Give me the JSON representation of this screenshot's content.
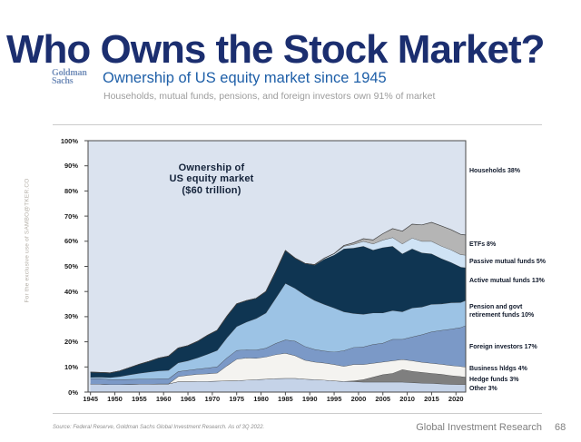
{
  "slide": {
    "title": "Who Owns the Stock Market?",
    "logo": {
      "line1": "Goldman",
      "line2": "Sachs"
    },
    "heading": "Ownership of US equity market since 1945",
    "subheading": "Households, mutual funds, pensions, and foreign investors own 91% of market",
    "watermark": "For the exclusive use of SAMBO@TKER.CO",
    "source": "Source: Federal Reserve, Goldman Sachs Global Investment Research. As of 3Q 2022.",
    "footer": {
      "department": "Global Investment Research",
      "page": "68"
    }
  },
  "chart_data": {
    "type": "area",
    "stacked": true,
    "annotation": "Ownership of\nUS equity market\n($60 trillion)",
    "ylim": [
      0,
      100
    ],
    "x_domain": [
      1944.5,
      2022
    ],
    "grid": false,
    "legend_position": "right",
    "x": [
      1945,
      1947,
      1949,
      1951,
      1953,
      1955,
      1957,
      1959,
      1961,
      1963,
      1965,
      1967,
      1969,
      1971,
      1973,
      1975,
      1977,
      1979,
      1981,
      1983,
      1985,
      1987,
      1989,
      1991,
      1993,
      1995,
      1997,
      1999,
      2001,
      2003,
      2005,
      2007,
      2009,
      2011,
      2013,
      2015,
      2017,
      2019,
      2021,
      2022
    ],
    "x_ticks": [
      1945,
      1950,
      1955,
      1960,
      1965,
      1970,
      1975,
      1980,
      1985,
      1990,
      1995,
      2000,
      2005,
      2010,
      2015,
      2020
    ],
    "y_ticks": [
      {
        "label": "100%",
        "value": 100
      },
      {
        "label": "90%",
        "value": 90
      },
      {
        "label": "80%",
        "value": 80
      },
      {
        "label": "70%",
        "value": 70
      },
      {
        "label": "60%",
        "value": 60
      },
      {
        "label": "50%",
        "value": 50
      },
      {
        "label": "40%",
        "value": 40
      },
      {
        "label": "30%",
        "value": 30
      },
      {
        "label": "20%",
        "value": 20
      },
      {
        "label": "10%",
        "value": 10
      },
      {
        "label": "0%",
        "value": 0
      }
    ],
    "background_series": {
      "name": "Households",
      "share_label": "Households 38%",
      "color": "#dbe3ef"
    },
    "series": [
      {
        "name": "Other",
        "color": "#c5d3e8",
        "values": [
          3.2,
          3.2,
          3.0,
          3.0,
          3.1,
          3.2,
          3.2,
          3.3,
          3.3,
          4.2,
          4.2,
          4.3,
          4.3,
          4.4,
          4.5,
          4.6,
          4.8,
          5.0,
          5.2,
          5.4,
          5.5,
          5.5,
          5.2,
          5.0,
          4.8,
          4.5,
          4.3,
          4.2,
          4.0,
          4.0,
          4.0,
          4.0,
          4.0,
          3.8,
          3.6,
          3.5,
          3.3,
          3.1,
          3.0,
          3.0
        ]
      },
      {
        "name": "Hedge funds",
        "color": "#7f7f7f",
        "values": [
          0,
          0,
          0,
          0,
          0,
          0,
          0,
          0,
          0,
          0,
          0,
          0,
          0,
          0,
          0,
          0,
          0,
          0,
          0,
          0,
          0,
          0,
          0,
          0,
          0,
          0,
          0,
          0.3,
          1.0,
          2.0,
          3.0,
          3.5,
          5.0,
          4.5,
          4.3,
          4.0,
          3.8,
          3.5,
          3.2,
          3.0
        ]
      },
      {
        "name": "Business hldgs",
        "color": "#f4f3f0",
        "values": [
          0,
          0,
          0,
          0,
          0,
          0,
          0,
          0,
          0,
          2.0,
          2.5,
          2.8,
          3.0,
          3.2,
          6.0,
          8.5,
          8.8,
          8.5,
          8.8,
          9.5,
          10.0,
          9.0,
          7.5,
          7.0,
          6.8,
          6.5,
          6.0,
          6.5,
          6.0,
          5.5,
          5.0,
          5.0,
          4.0,
          4.2,
          4.0,
          4.0,
          4.0,
          4.0,
          4.0,
          4.0
        ]
      },
      {
        "name": "Foreign investors",
        "color": "#7b99c7",
        "values": [
          2.2,
          2.2,
          2.0,
          2.0,
          2.0,
          2.0,
          2.0,
          2.0,
          2.0,
          2.0,
          2.0,
          2.1,
          2.3,
          2.5,
          3.2,
          3.5,
          3.3,
          3.3,
          3.5,
          4.5,
          5.3,
          5.8,
          5.5,
          5.0,
          4.8,
          5.0,
          6.2,
          6.8,
          7.0,
          7.5,
          7.5,
          8.5,
          8.0,
          9.5,
          11.0,
          12.5,
          13.5,
          14.5,
          15.5,
          16.5
        ]
      },
      {
        "name": "Pension and govt retirement funds",
        "color": "#9cc3e5",
        "values": [
          0.5,
          0.6,
          0.8,
          1.2,
          1.8,
          2.3,
          2.8,
          3.2,
          3.4,
          3.5,
          3.8,
          4.5,
          5.5,
          6.5,
          8.0,
          9.5,
          11.0,
          12.5,
          14.0,
          18.0,
          22.5,
          21.0,
          20.5,
          19.5,
          18.5,
          17.5,
          15.5,
          13.5,
          13.0,
          12.5,
          12.0,
          11.5,
          11.0,
          11.5,
          11.0,
          11.0,
          10.5,
          10.5,
          10.0,
          10.0
        ]
      },
      {
        "name": "Active mutual funds",
        "color": "#0f3552",
        "values": [
          2.0,
          1.8,
          1.8,
          2.2,
          2.8,
          3.6,
          4.2,
          5.0,
          5.6,
          5.8,
          6.0,
          6.5,
          7.5,
          8.0,
          8.5,
          9.0,
          8.5,
          8.0,
          8.5,
          10.5,
          13.0,
          12.0,
          12.5,
          14.0,
          18.0,
          21.0,
          25.0,
          26.0,
          27.0,
          25.0,
          26.0,
          25.5,
          23.0,
          23.5,
          21.5,
          20.0,
          18.0,
          16.0,
          14.0,
          13.0
        ]
      },
      {
        "name": "Passive mutual funds",
        "color": "#cfe3f5",
        "values": [
          0,
          0,
          0,
          0,
          0,
          0,
          0,
          0,
          0,
          0,
          0,
          0,
          0,
          0,
          0,
          0,
          0,
          0,
          0,
          0,
          0,
          0,
          0,
          0.2,
          0.4,
          0.6,
          1.0,
          1.5,
          2.0,
          2.5,
          3.0,
          3.5,
          4.0,
          4.3,
          4.6,
          5.0,
          5.0,
          5.0,
          5.0,
          5.0
        ]
      },
      {
        "name": "ETFs",
        "color": "#b5b5b5",
        "values": [
          0,
          0,
          0,
          0,
          0,
          0,
          0,
          0,
          0,
          0,
          0,
          0,
          0,
          0,
          0,
          0,
          0,
          0,
          0,
          0,
          0,
          0,
          0,
          0,
          0,
          0,
          0.3,
          0.6,
          1.0,
          1.5,
          2.5,
          3.5,
          5.0,
          5.5,
          6.5,
          7.5,
          8.0,
          8.0,
          8.0,
          8.0
        ]
      }
    ],
    "legend": [
      {
        "lines": [
          "Households 38%"
        ],
        "level": 88
      },
      {
        "lines": [
          "ETFs 8%"
        ],
        "level": 59
      },
      {
        "lines": [
          "Passive mutual funds 5%"
        ],
        "level": 52
      },
      {
        "lines": [
          "Active mutual funds 13%"
        ],
        "level": 44.5
      },
      {
        "lines": [
          "Pension and govt",
          "retirement funds 10%"
        ],
        "level": 32
      },
      {
        "lines": [
          "Foreign investors 17%"
        ],
        "level": 18
      },
      {
        "lines": [
          "Business hldgs 4%"
        ],
        "level": 9.3
      },
      {
        "lines": [
          "Hedge funds 3%"
        ],
        "level": 5.2
      },
      {
        "lines": [
          "Other 3%"
        ],
        "level": 1.5
      }
    ],
    "colors": {
      "outline": "#3f3f3f",
      "axis": "#4a4a4a",
      "plot_background": "#dbe3ef"
    }
  }
}
